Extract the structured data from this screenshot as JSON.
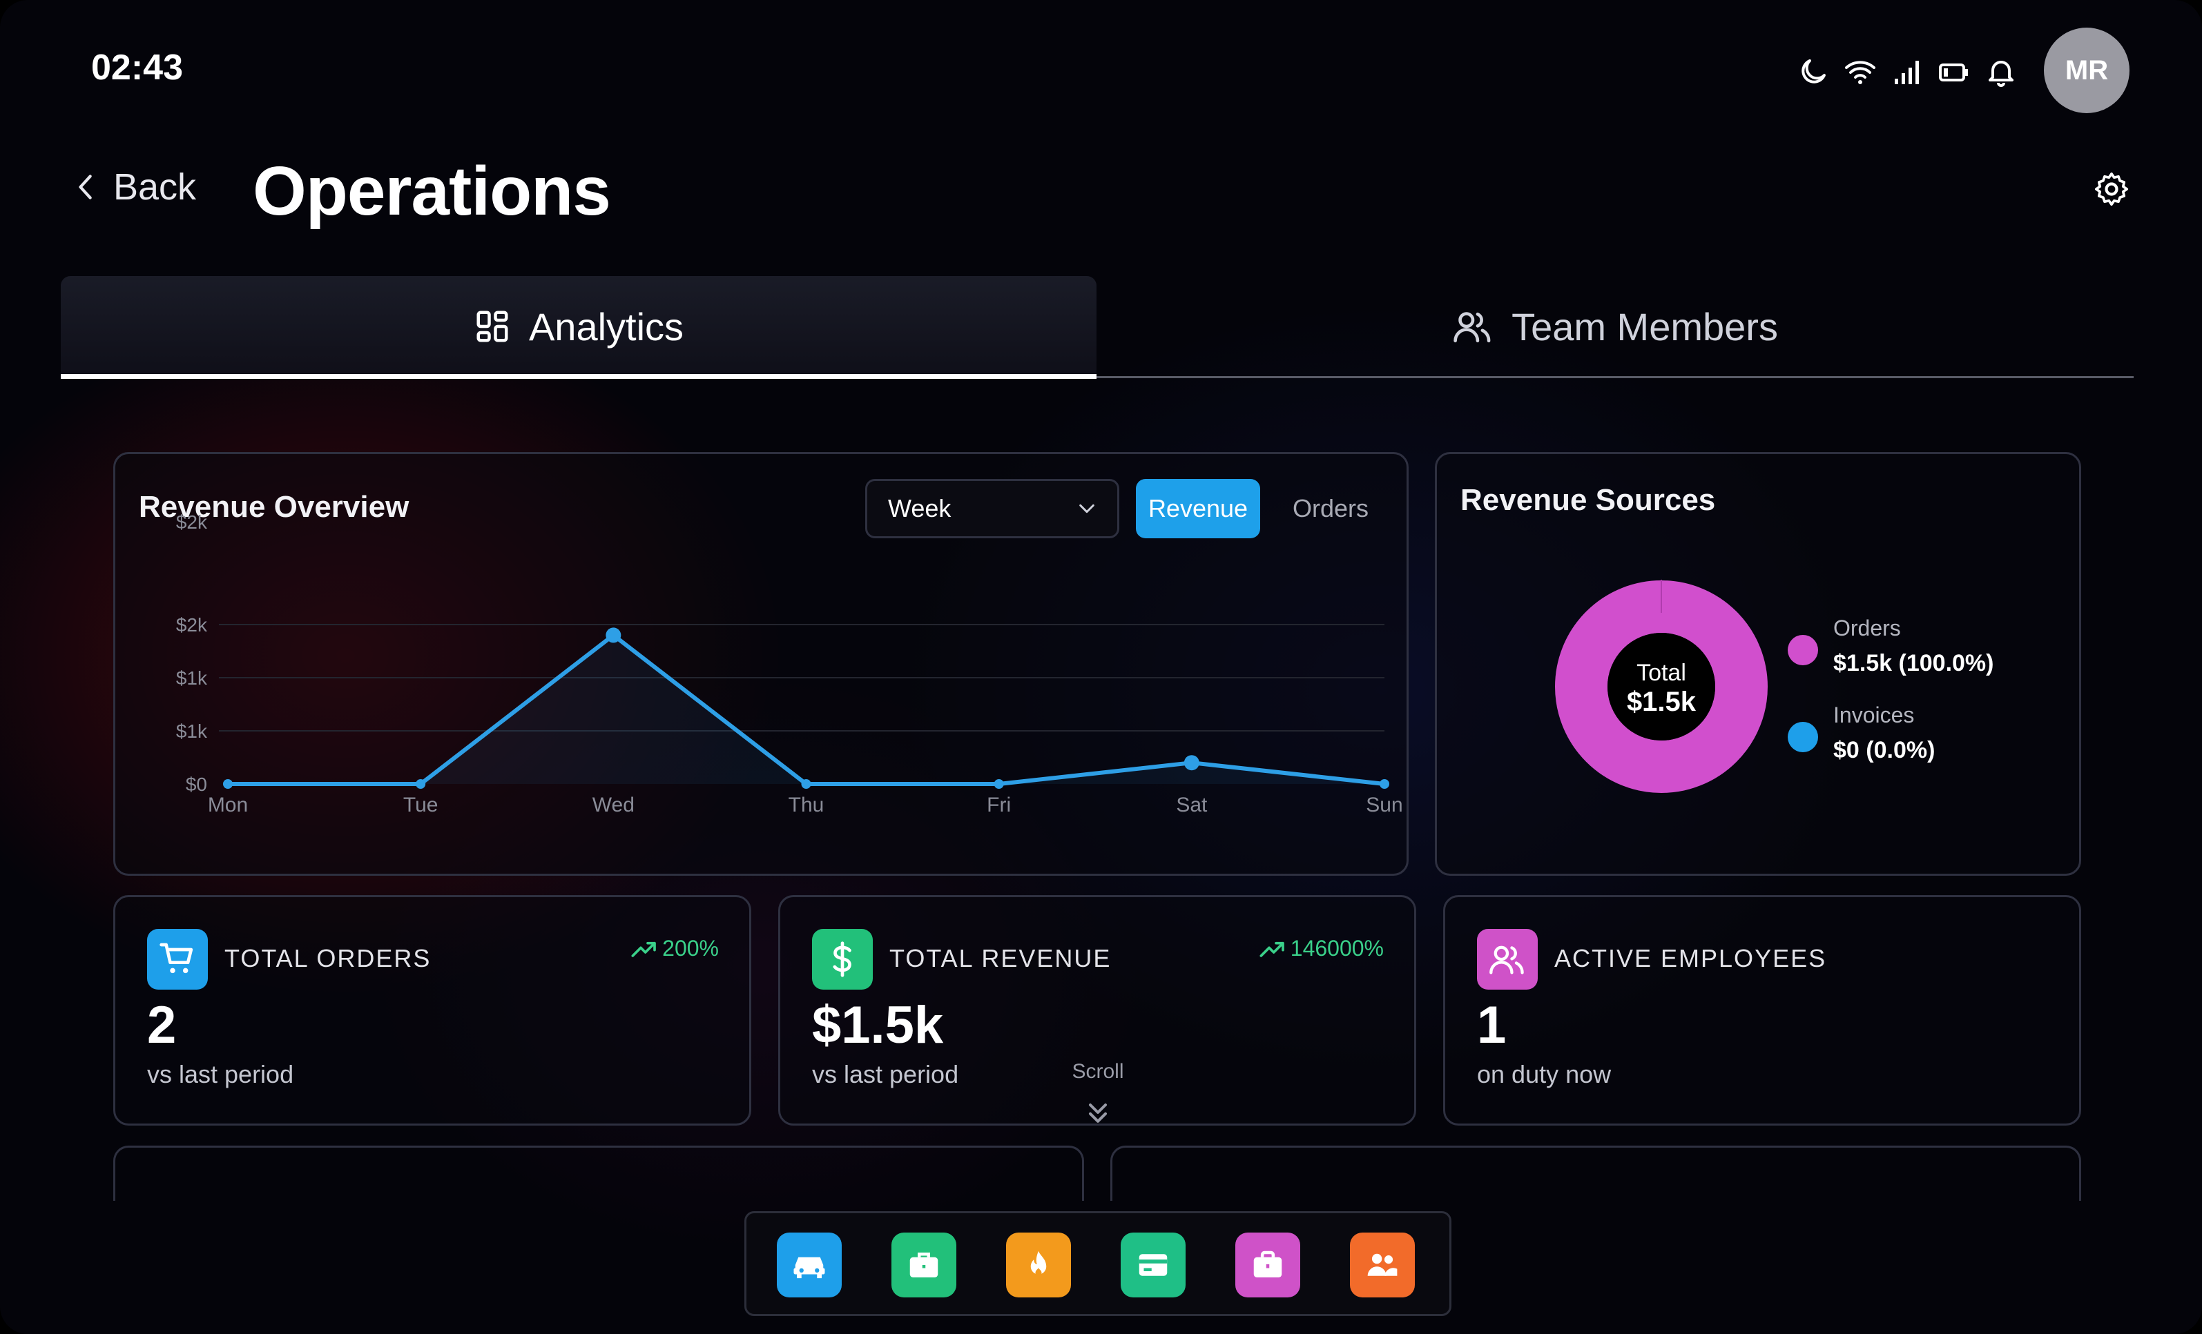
{
  "status_bar": {
    "time": "02:43",
    "icons": [
      "moon-icon",
      "wifi-icon",
      "signal-icon",
      "battery-icon",
      "bell-icon"
    ],
    "avatar_initials": "MR"
  },
  "header": {
    "back_label": "Back",
    "title": "Operations"
  },
  "tabs": [
    {
      "label": "Analytics",
      "icon": "grid-icon",
      "active": true
    },
    {
      "label": "Team Members",
      "icon": "users-icon",
      "active": false
    }
  ],
  "revenue_overview": {
    "title": "Revenue Overview",
    "period_select": "Week",
    "toggle": {
      "revenue_label": "Revenue",
      "orders_label": "Orders",
      "active": "Revenue"
    },
    "y_tick_labels": [
      "$2k",
      "$2k",
      "$1k",
      "$1k",
      "$0"
    ]
  },
  "chart_data": {
    "type": "line",
    "x": [
      "Mon",
      "Tue",
      "Wed",
      "Thu",
      "Fri",
      "Sat",
      "Sun"
    ],
    "series": [
      {
        "values": [
          0,
          0,
          1400,
          0,
          0,
          200,
          0
        ]
      }
    ],
    "ylim": [
      0,
      2000
    ],
    "y_ticks": [
      0,
      500,
      1000,
      1500,
      2000
    ],
    "grid": true,
    "color": "#2e9fe6"
  },
  "revenue_sources": {
    "title": "Revenue Sources",
    "center_label": "Total",
    "center_value": "$1.5k",
    "items": [
      {
        "name": "Orders",
        "value": "$1.5k (100.0%)",
        "share": 100.0,
        "color": "#d14fcd"
      },
      {
        "name": "Invoices",
        "value": "$0 (0.0%)",
        "share": 0.0,
        "color": "#1e9fea"
      }
    ]
  },
  "stats": [
    {
      "label": "TOTAL ORDERS",
      "value": "2",
      "sub": "vs last period",
      "trend": "200%",
      "icon": "cart-icon",
      "color": "#1e9fea"
    },
    {
      "label": "TOTAL REVENUE",
      "value": "$1.5k",
      "sub": "vs last period",
      "trend": "146000%",
      "icon": "dollar-icon",
      "color": "#22c07a"
    },
    {
      "label": "ACTIVE EMPLOYEES",
      "value": "1",
      "sub": "on duty now",
      "trend": "",
      "icon": "users-icon",
      "color": "#cf52c8"
    }
  ],
  "scroll_hint": "Scroll",
  "dock": [
    {
      "icon": "car-icon",
      "color": "#1e9fea"
    },
    {
      "icon": "briefcase-icon",
      "color": "#22c07a"
    },
    {
      "icon": "flame-icon",
      "color": "#f39a1c"
    },
    {
      "icon": "card-icon",
      "color": "#1fbf86"
    },
    {
      "icon": "bag-icon",
      "color": "#cf52c8"
    },
    {
      "icon": "team-icon",
      "color": "#f26b2a"
    }
  ]
}
